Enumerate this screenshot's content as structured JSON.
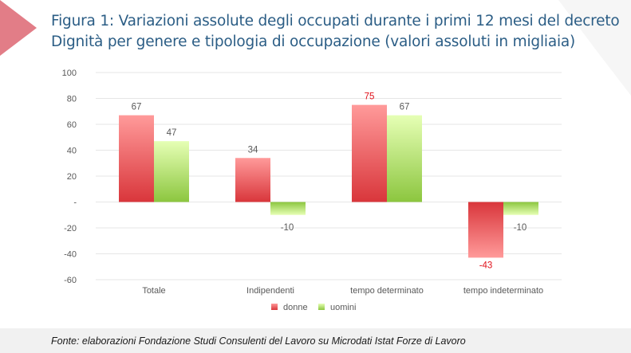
{
  "title_lines": [
    "Figura 1: Variazioni assolute degli occupati durante i primi 12 mesi del decreto",
    "Dignità per genere e tipologia di occupazione (valori assoluti in migliaia)"
  ],
  "source": "Fonte: elaborazioni Fondazione Studi Consulenti del Lavoro su Microdati Istat Forze di Lavoro",
  "colors": {
    "title": "#2b5d85",
    "donne_top": "#ff9a9a",
    "donne_bottom": "#d9363b",
    "uomini_top": "#e6ffb5",
    "uomini_bottom": "#8cc63f",
    "label_default": "#595959",
    "label_highlight": "#e0101a",
    "grid": "#e6e6e6",
    "decor_arrow": "#e27d87"
  },
  "chart_data": {
    "type": "bar",
    "categories": [
      "Totale",
      "Indipendenti",
      "tempo determinato",
      "tempo indeterminato"
    ],
    "series": [
      {
        "name": "donne",
        "values": [
          67,
          34,
          75,
          -43
        ]
      },
      {
        "name": "uomini",
        "values": [
          47,
          -10,
          67,
          -10
        ]
      }
    ],
    "data_labels": [
      [
        "67",
        "34",
        "75",
        "-43"
      ],
      [
        "47",
        "-10",
        "67",
        "-10"
      ]
    ],
    "highlighted_labels": [
      [
        false,
        false,
        true,
        true
      ],
      [
        false,
        false,
        false,
        false
      ]
    ],
    "ylim": [
      -60,
      100
    ],
    "yticks": [
      -60,
      -40,
      -20,
      0,
      20,
      40,
      60,
      80,
      100
    ],
    "ytick_labels": [
      "-60",
      "-40",
      "-20",
      "-",
      "20",
      "40",
      "60",
      "80",
      "100"
    ],
    "xlabel": "",
    "ylabel": "",
    "legend_position": "bottom",
    "grid": true
  }
}
